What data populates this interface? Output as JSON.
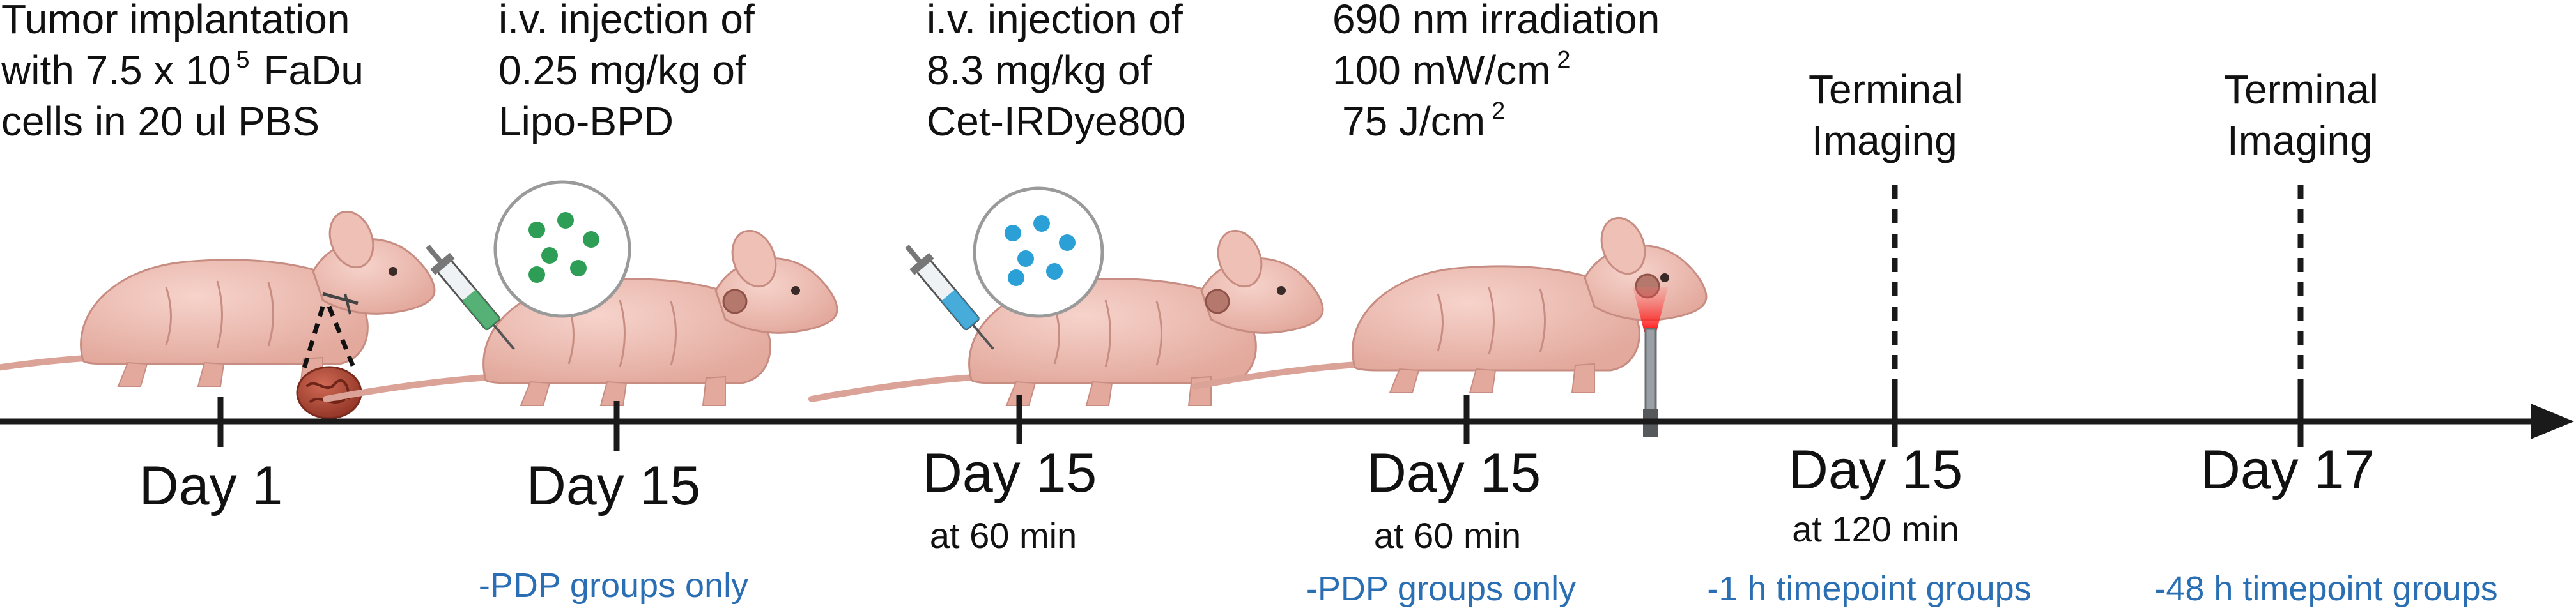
{
  "colors": {
    "axis": "#1a1a1a",
    "note": "#2a6fb4",
    "mouse_body": "#e9b7ad",
    "mouse_outline": "#c88d82",
    "tumor": "#b24b3a",
    "lipo_dots": "#2e9e57",
    "dye_dots": "#2aa0d6",
    "laser": "#ff1a1a"
  },
  "steps": [
    {
      "heading": [
        "Tumor implantation",
        "with 7.5 x 10",
        "cells in 20 ul PBS"
      ],
      "heading_sup": "5",
      "heading_tail": "FaDu",
      "day": "Day 1",
      "time": "",
      "note": "",
      "icon": "mouse-tumor-implant"
    },
    {
      "heading": [
        "i.v. injection of",
        "0.25 mg/kg of",
        "Lipo-BPD"
      ],
      "day": "Day 15",
      "time": "",
      "note": "-PDP groups only",
      "icon": "mouse-syringe-green"
    },
    {
      "heading": [
        "i.v. injection of",
        "8.3 mg/kg of",
        "Cet-IRDye800"
      ],
      "day": "Day 15",
      "time": "at 60 min",
      "note": "",
      "icon": "mouse-syringe-blue"
    },
    {
      "heading": [
        "690 nm irradiation",
        "100 mW/cm",
        "75 J/cm"
      ],
      "heading_sup": "2",
      "heading_sup2": "2",
      "day": "Day 15",
      "time": "at 60 min",
      "note": "-PDP groups only",
      "icon": "mouse-laser"
    },
    {
      "heading": [
        "Terminal",
        "Imaging"
      ],
      "day": "Day 15",
      "time": "at 120 min",
      "note": "-1 h timepoint groups",
      "icon": "dashed-marker"
    },
    {
      "heading": [
        "Terminal",
        "Imaging"
      ],
      "day": "Day 17",
      "time": "",
      "note": "-48 h timepoint groups",
      "icon": "dashed-marker"
    }
  ]
}
